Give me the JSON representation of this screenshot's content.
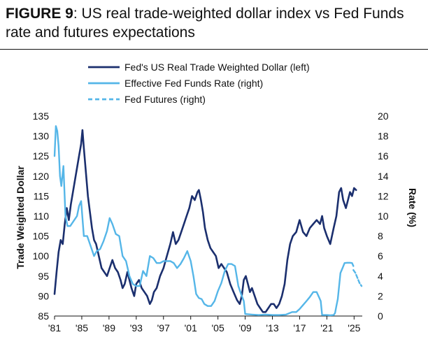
{
  "figure": {
    "label": "FIGURE 9",
    "title_rest": ": US real trade-weighted dollar index vs Fed Funds rate and futures expectations"
  },
  "chart_data": {
    "type": "line",
    "x_tick_labels": [
      "'81",
      "'85",
      "'89",
      "'93",
      "'97",
      "'01",
      "'05",
      "'09",
      "'13",
      "'17",
      "'21",
      "'25"
    ],
    "x_tick_years": [
      1981,
      1985,
      1989,
      1993,
      1997,
      2001,
      2005,
      2009,
      2013,
      2017,
      2021,
      2025
    ],
    "xlim": [
      1981,
      2026.2
    ],
    "y_left": {
      "label": "Trade Weighted Dollar",
      "lim": [
        85,
        135
      ],
      "ticks": [
        85,
        90,
        95,
        100,
        105,
        110,
        115,
        120,
        125,
        130,
        135
      ]
    },
    "y_right": {
      "label": "Rate (%)",
      "lim": [
        0,
        20
      ],
      "ticks": [
        0,
        2,
        4,
        6,
        8,
        10,
        12,
        14,
        16,
        18,
        20
      ]
    },
    "legend_position": "top",
    "series": [
      {
        "name": "Fed's US Real Trade Weighted Dollar (left)",
        "axis": "left",
        "color": "#1b2f6e",
        "style": "solid",
        "x": [
          1981.0,
          1981.3,
          1981.6,
          1981.9,
          1982.2,
          1982.5,
          1982.8,
          1983.1,
          1983.4,
          1983.7,
          1984.0,
          1984.3,
          1984.6,
          1984.9,
          1985.1,
          1985.3,
          1985.6,
          1985.9,
          1986.2,
          1986.5,
          1986.8,
          1987.1,
          1987.5,
          1987.9,
          1988.3,
          1988.7,
          1989.1,
          1989.5,
          1989.9,
          1990.3,
          1990.7,
          1991.0,
          1991.3,
          1991.7,
          1992.0,
          1992.3,
          1992.7,
          1993.0,
          1993.4,
          1993.8,
          1994.2,
          1994.6,
          1995.0,
          1995.3,
          1995.6,
          1996.0,
          1996.5,
          1997.0,
          1997.5,
          1998.0,
          1998.4,
          1998.8,
          1999.2,
          1999.6,
          2000.0,
          2000.4,
          2000.8,
          2001.2,
          2001.6,
          2002.0,
          2002.2,
          2002.5,
          2002.8,
          2003.1,
          2003.5,
          2003.9,
          2004.3,
          2004.7,
          2005.1,
          2005.5,
          2005.9,
          2006.3,
          2006.8,
          2007.3,
          2007.8,
          2008.2,
          2008.5,
          2008.8,
          2009.1,
          2009.4,
          2009.7,
          2010.0,
          2010.4,
          2010.8,
          2011.2,
          2011.6,
          2012.0,
          2012.4,
          2012.8,
          2013.2,
          2013.6,
          2014.0,
          2014.4,
          2014.8,
          2015.2,
          2015.6,
          2016.0,
          2016.5,
          2017.0,
          2017.5,
          2018.0,
          2018.5,
          2019.0,
          2019.5,
          2020.0,
          2020.3,
          2020.6,
          2021.0,
          2021.5,
          2022.0,
          2022.4,
          2022.8,
          2023.1,
          2023.4,
          2023.8,
          2024.1,
          2024.4,
          2024.7,
          2025.0,
          2025.3
        ],
        "y": [
          90.5,
          96,
          101,
          104,
          103,
          108,
          112,
          109,
          113,
          116,
          119,
          122,
          125,
          128,
          131.5,
          127,
          121,
          115,
          111,
          107,
          104,
          103,
          100,
          97,
          96,
          95,
          97,
          99,
          97,
          96,
          94,
          92,
          93,
          96,
          94,
          92,
          90,
          93,
          94,
          92,
          91,
          90,
          88,
          89,
          91,
          92,
          95,
          97,
          100,
          103,
          106,
          103,
          104,
          106,
          108,
          110,
          112,
          115,
          114,
          116,
          116.5,
          114,
          111,
          107,
          104,
          102,
          101,
          100,
          97,
          98,
          97,
          96,
          93,
          91,
          89,
          88,
          90,
          94,
          95,
          93,
          91,
          92,
          90,
          88,
          87,
          86,
          86,
          87,
          88,
          88,
          87,
          88,
          90,
          93,
          99,
          103,
          105,
          106,
          109,
          106,
          105,
          107,
          108,
          109,
          108,
          110,
          107,
          105,
          103,
          107,
          110,
          116,
          117,
          114,
          112,
          114,
          116,
          115,
          117,
          116.5
        ]
      },
      {
        "name": "Effective Fed Funds Rate (right)",
        "axis": "right",
        "color": "#55b6e8",
        "style": "solid",
        "x": [
          1981.0,
          1981.2,
          1981.4,
          1981.6,
          1981.8,
          1982.0,
          1982.3,
          1982.6,
          1982.9,
          1983.3,
          1983.8,
          1984.3,
          1984.6,
          1984.9,
          1985.3,
          1985.8,
          1986.3,
          1986.8,
          1987.2,
          1987.7,
          1988.2,
          1988.7,
          1989.1,
          1989.5,
          1990.0,
          1990.5,
          1991.0,
          1991.5,
          1992.0,
          1992.5,
          1993.0,
          1993.5,
          1994.0,
          1994.5,
          1995.0,
          1995.5,
          1996.0,
          1996.5,
          1997.0,
          1997.5,
          1998.0,
          1998.5,
          1999.0,
          1999.5,
          2000.0,
          2000.5,
          2001.0,
          2001.4,
          2001.8,
          2002.2,
          2002.6,
          2003.0,
          2003.5,
          2004.0,
          2004.5,
          2005.0,
          2005.5,
          2006.0,
          2006.5,
          2007.0,
          2007.5,
          2008.0,
          2008.4,
          2008.8,
          2009.0,
          2010.0,
          2011.0,
          2012.0,
          2013.0,
          2014.0,
          2015.0,
          2015.9,
          2016.5,
          2017.0,
          2017.5,
          2018.0,
          2018.5,
          2019.0,
          2019.5,
          2019.9,
          2020.1,
          2020.3,
          2021.0,
          2021.5,
          2022.0,
          2022.2,
          2022.4,
          2022.6,
          2022.8,
          2023.0,
          2023.3,
          2023.6,
          2024.0,
          2024.4,
          2024.7,
          2024.9
        ],
        "y": [
          16,
          19,
          18.5,
          17,
          14,
          13,
          15,
          10,
          9,
          9,
          9.5,
          10,
          11,
          11.5,
          8,
          8,
          7,
          6,
          6.5,
          6.7,
          7.5,
          8.5,
          9.8,
          9.2,
          8.2,
          8,
          6,
          5.5,
          4,
          3.2,
          3,
          3,
          4.5,
          4,
          6,
          5.8,
          5.3,
          5.3,
          5.5,
          5.5,
          5.5,
          5.3,
          4.8,
          5.2,
          5.8,
          6.5,
          5.5,
          4,
          2.2,
          1.8,
          1.7,
          1.2,
          1,
          1,
          1.5,
          2.5,
          3.3,
          4.5,
          5.2,
          5.2,
          5,
          3,
          2.2,
          1.5,
          0.2,
          0.15,
          0.1,
          0.15,
          0.1,
          0.1,
          0.15,
          0.4,
          0.4,
          0.7,
          1.1,
          1.5,
          1.9,
          2.4,
          2.4,
          1.8,
          1.5,
          0.1,
          0.1,
          0.08,
          0.1,
          0.3,
          1,
          1.7,
          3,
          4.3,
          4.8,
          5.3,
          5.33,
          5.33,
          5.3,
          5.0
        ]
      },
      {
        "name": "Fed Futures (right)",
        "axis": "right",
        "color": "#55b6e8",
        "style": "dashed",
        "x": [
          2024.9,
          2025.2,
          2025.5,
          2025.8,
          2026.1
        ],
        "y": [
          4.6,
          4.3,
          3.8,
          3.3,
          3.0
        ]
      }
    ]
  }
}
